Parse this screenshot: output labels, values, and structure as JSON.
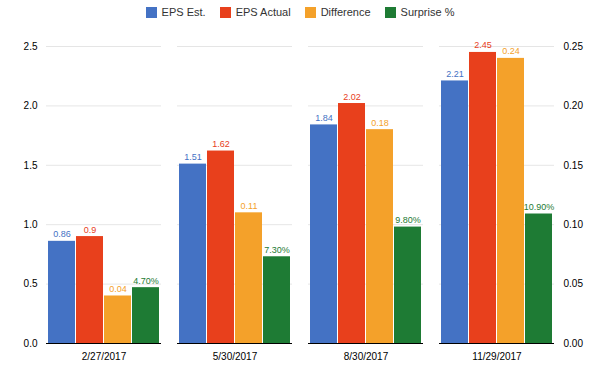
{
  "chart_data": {
    "type": "bar",
    "categories": [
      "2/27/2017",
      "5/30/2017",
      "8/30/2017",
      "11/29/2017"
    ],
    "series": [
      {
        "name": "EPS Est.",
        "color": "#4472C4",
        "values": [
          0.86,
          1.51,
          1.84,
          2.21
        ]
      },
      {
        "name": "EPS Actual",
        "color": "#E8401C",
        "values": [
          0.9,
          1.62,
          2.02,
          2.45
        ]
      },
      {
        "name": "Difference",
        "color": "#F4A12A",
        "values": [
          0.04,
          0.11,
          0.18,
          0.24
        ],
        "axis": "y2"
      },
      {
        "name": "Surprise %",
        "color": "#1E7B34",
        "values": [
          0.047,
          0.073,
          0.098,
          0.109
        ],
        "axis": "y2",
        "value_labels": [
          "4.70%",
          "7.30%",
          "9.80%",
          "10.90%"
        ]
      }
    ],
    "ylim": [
      0,
      2.5
    ],
    "yticks": [
      {
        "value": 0,
        "label": "0.0"
      },
      {
        "value": 0.5,
        "label": "0.5"
      },
      {
        "value": 1.0,
        "label": "1.0"
      },
      {
        "value": 1.5,
        "label": "1.5"
      },
      {
        "value": 2.0,
        "label": "2.0"
      },
      {
        "value": 2.5,
        "label": "2.5"
      }
    ],
    "y2lim": [
      0,
      0.25
    ],
    "y2ticks": [
      {
        "value": 0,
        "label": "0.00"
      },
      {
        "value": 0.05,
        "label": "0.05"
      },
      {
        "value": 0.1,
        "label": "0.10"
      },
      {
        "value": 0.15,
        "label": "0.15"
      },
      {
        "value": 0.2,
        "label": "0.20"
      },
      {
        "value": 0.25,
        "label": "0.25"
      }
    ],
    "grid": true,
    "data_labels": true,
    "legend": "top"
  }
}
